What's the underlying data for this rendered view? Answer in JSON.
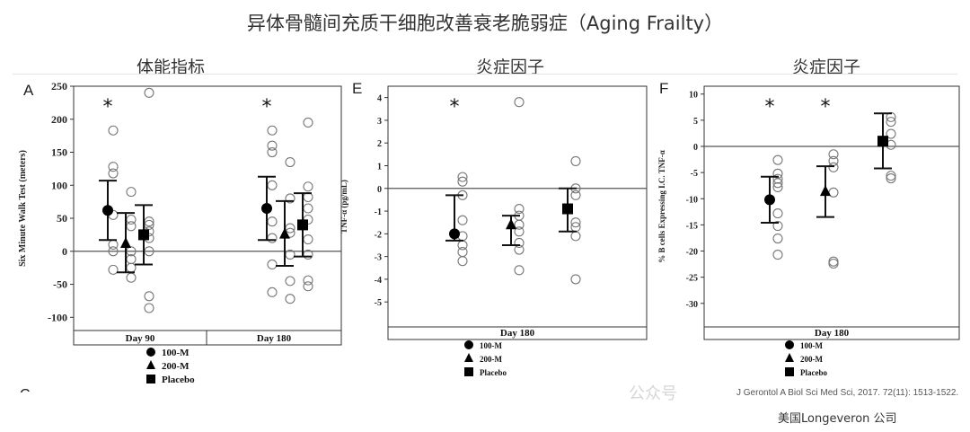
{
  "title": "异体骨髓间充质干细胞改善衰老脆弱症（Aging Frailty）",
  "section_titles": [
    "体能指标",
    "炎症因子",
    "炎症因子"
  ],
  "citation": "J Gerontol A Biol Sci Med Sci, 2017. 72(11): 1513-1522.",
  "brand": "美国Longeveron 公司",
  "watermark": "公众号",
  "cut_letter": "C",
  "chart_data": [
    {
      "type": "scatter",
      "panel": "A",
      "ylabel": "Six Minute Walk Test (meters)",
      "ylim": [
        -120,
        250
      ],
      "yticks": [
        -100,
        -50,
        0,
        50,
        100,
        150,
        200,
        250
      ],
      "groups": [
        "Day 90",
        "Day 180"
      ],
      "legend": [
        "100-M",
        "200-M",
        "Placebo"
      ],
      "stars": [
        0,
        3
      ],
      "series": [
        {
          "group": "Day 90",
          "treatment": "100-M",
          "mean": 62,
          "upper": 107,
          "lower": 17,
          "points": [
            183,
            128,
            118,
            55,
            10,
            0,
            -28
          ]
        },
        {
          "group": "Day 90",
          "treatment": "200-M",
          "mean": 12,
          "upper": 58,
          "lower": -32,
          "points": [
            90,
            48,
            38,
            0,
            -12,
            -25,
            -40
          ]
        },
        {
          "group": "Day 90",
          "treatment": "Placebo",
          "mean": 25,
          "upper": 70,
          "lower": -20,
          "points": [
            240,
            45,
            40,
            30,
            20,
            0,
            -68,
            -86
          ]
        },
        {
          "group": "Day 180",
          "treatment": "100-M",
          "mean": 65,
          "upper": 113,
          "lower": 17,
          "points": [
            183,
            160,
            150,
            100,
            45,
            20,
            -20,
            -62
          ]
        },
        {
          "group": "Day 180",
          "treatment": "200-M",
          "mean": 26,
          "upper": 76,
          "lower": -22,
          "points": [
            135,
            80,
            35,
            28,
            -5,
            -45,
            -72
          ]
        },
        {
          "group": "Day 180",
          "treatment": "Placebo",
          "mean": 40,
          "upper": 88,
          "lower": -8,
          "points": [
            195,
            98,
            82,
            65,
            48,
            18,
            -5,
            -44,
            -53
          ]
        }
      ]
    },
    {
      "type": "scatter",
      "panel": "E",
      "ylabel": "TNF-α (pg/mL)",
      "ylim": [
        -6.1,
        4.5
      ],
      "yticks": [
        -5,
        -4,
        -3,
        -2,
        -1,
        0,
        1,
        2,
        3,
        4
      ],
      "groups": [
        "Day 180"
      ],
      "legend": [
        "100-M",
        "200-M",
        "Placebo"
      ],
      "stars": [
        0
      ],
      "series": [
        {
          "group": "Day 180",
          "treatment": "100-M",
          "mean": -2.0,
          "upper": -0.3,
          "lower": -2.3,
          "points": [
            0.5,
            0.3,
            -0.3,
            -1.4,
            -2.1,
            -2.5,
            -2.8,
            -3.2
          ]
        },
        {
          "group": "Day 180",
          "treatment": "200-M",
          "mean": -1.6,
          "upper": -1.2,
          "lower": -2.5,
          "points": [
            3.8,
            -0.9,
            -1.2,
            -1.6,
            -1.9,
            -2.4,
            -2.7,
            -3.6
          ]
        },
        {
          "group": "Day 180",
          "treatment": "Placebo",
          "mean": -0.9,
          "upper": 0.0,
          "lower": -1.9,
          "points": [
            1.2,
            0.0,
            -0.3,
            -1.5,
            -1.7,
            -2.1,
            -4.0
          ]
        }
      ]
    },
    {
      "type": "scatter",
      "panel": "F",
      "ylabel": "% B cells Expressing I.C. TNF-α",
      "ylim": [
        -34.5,
        11.5
      ],
      "yticks": [
        -30,
        -25,
        -20,
        -15,
        -10,
        -5,
        0,
        5,
        10
      ],
      "groups": [
        "Day 180"
      ],
      "legend": [
        "100-M",
        "200-M",
        "Placebo"
      ],
      "stars": [
        0,
        1
      ],
      "series": [
        {
          "group": "Day 180",
          "treatment": "100-M",
          "mean": -10.2,
          "upper": -5.8,
          "lower": -14.6,
          "points": [
            -2.6,
            -5.2,
            -6.2,
            -7.0,
            -7.8,
            -12.8,
            -15.2,
            -17.6,
            -20.7
          ]
        },
        {
          "group": "Day 180",
          "treatment": "200-M",
          "mean": -8.6,
          "upper": -3.8,
          "lower": -13.5,
          "points": [
            -1.5,
            -2.8,
            -4.0,
            -8.8,
            -22.0,
            -22.4
          ]
        },
        {
          "group": "Day 180",
          "treatment": "Placebo",
          "mean": 1.0,
          "upper": 6.3,
          "lower": -4.2,
          "points": [
            5.6,
            4.7,
            2.4,
            0.3,
            -5.6,
            -6.1
          ]
        }
      ]
    }
  ]
}
